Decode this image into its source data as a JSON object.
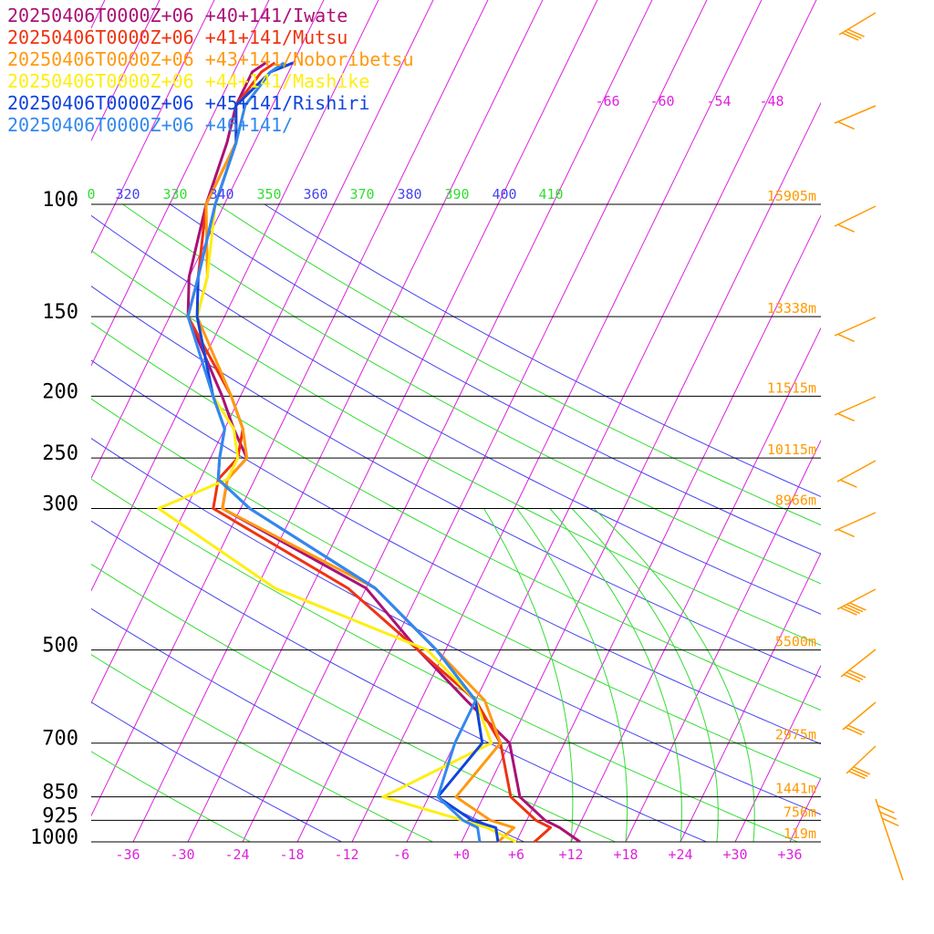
{
  "colors": {
    "background": "#ffffff",
    "isobar": "#000000",
    "isotherm": "#dd22dd",
    "theta_blue": "#4444ee",
    "theta_green": "#33dd33",
    "moist_adiabat": "#33dd33",
    "height_label": "#ff9900",
    "wind_barb": "#ff9900"
  },
  "chart_data": {
    "type": "line",
    "chart_kind": "skew-T log-p sounding",
    "y_axis_scale": "log",
    "ylim": [
      1000,
      100
    ],
    "xlim": [
      -36,
      36
    ],
    "pressure_levels": [
      {
        "p": 100,
        "label": "100",
        "height": "15905m"
      },
      {
        "p": 150,
        "label": "150",
        "height": "13338m"
      },
      {
        "p": 200,
        "label": "200",
        "height": "11515m"
      },
      {
        "p": 250,
        "label": "250",
        "height": "10115m"
      },
      {
        "p": 300,
        "label": "300",
        "height": "8966m"
      },
      {
        "p": 500,
        "label": "500",
        "height": "5500m"
      },
      {
        "p": 700,
        "label": "700",
        "height": "2975m"
      },
      {
        "p": 850,
        "label": "850",
        "height": "1441m"
      },
      {
        "p": 925,
        "label": "925",
        "height": "756m"
      },
      {
        "p": 1000,
        "label": "1000",
        "height": "119m"
      }
    ],
    "temperature_ticks": [
      "-36",
      "-30",
      "-24",
      "-18",
      "-12",
      "-6",
      "+0",
      "+6",
      "+12",
      "+18",
      "+24",
      "+30",
      "+36"
    ],
    "upper_isotherm_labels": [
      "-66",
      "-60",
      "-54",
      "-48"
    ],
    "theta_labels": [
      {
        "text": "0",
        "color": "#33dd33"
      },
      {
        "text": "320",
        "color": "#4444ee"
      },
      {
        "text": "330",
        "color": "#33dd33"
      },
      {
        "text": "340",
        "color": "#4444ee"
      },
      {
        "text": "350",
        "color": "#33dd33"
      },
      {
        "text": "360",
        "color": "#4444ee"
      },
      {
        "text": "370",
        "color": "#33dd33"
      },
      {
        "text": "380",
        "color": "#4444ee"
      },
      {
        "text": "390",
        "color": "#33dd33"
      },
      {
        "text": "400",
        "color": "#4444ee"
      },
      {
        "text": "410",
        "color": "#33dd33"
      }
    ],
    "series": [
      {
        "name": "20250406T0000Z+06 +40+141/Iwate",
        "color": "#aa1177",
        "points": [
          [
            1000,
            13
          ],
          [
            950,
            10
          ],
          [
            925,
            8
          ],
          [
            850,
            4
          ],
          [
            700,
            0
          ],
          [
            600,
            -7
          ],
          [
            500,
            -15
          ],
          [
            400,
            -24
          ],
          [
            300,
            -44
          ],
          [
            270,
            -45
          ],
          [
            250,
            -44
          ],
          [
            225,
            -47
          ],
          [
            200,
            -50
          ],
          [
            150,
            -58
          ],
          [
            130,
            -60
          ],
          [
            100,
            -62
          ],
          [
            80,
            -63
          ],
          [
            70,
            -64
          ],
          [
            62,
            -64
          ],
          [
            60,
            -63
          ]
        ]
      },
      {
        "name": "20250406T0000Z+06 +41+141/Mutsu",
        "color": "#ee3311",
        "points": [
          [
            1000,
            8
          ],
          [
            950,
            9
          ],
          [
            925,
            7
          ],
          [
            850,
            3
          ],
          [
            700,
            -1
          ],
          [
            600,
            -6
          ],
          [
            500,
            -15
          ],
          [
            400,
            -26
          ],
          [
            300,
            -45
          ],
          [
            270,
            -46
          ],
          [
            250,
            -45
          ],
          [
            225,
            -46
          ],
          [
            200,
            -49
          ],
          [
            150,
            -58
          ],
          [
            130,
            -59
          ],
          [
            100,
            -62
          ],
          [
            80,
            -62
          ],
          [
            70,
            -64
          ],
          [
            62,
            -63
          ],
          [
            60,
            -62
          ]
        ]
      },
      {
        "name": "20250406T0000Z+06 +43+141/Noboribetsu",
        "color": "#ff9911",
        "points": [
          [
            1000,
            4
          ],
          [
            950,
            5
          ],
          [
            925,
            2
          ],
          [
            850,
            -3
          ],
          [
            700,
            -1
          ],
          [
            600,
            -5
          ],
          [
            500,
            -13
          ],
          [
            400,
            -23
          ],
          [
            300,
            -44
          ],
          [
            270,
            -45
          ],
          [
            250,
            -44
          ],
          [
            225,
            -46
          ],
          [
            200,
            -49
          ],
          [
            150,
            -57
          ],
          [
            130,
            -58
          ],
          [
            100,
            -62
          ],
          [
            80,
            -62
          ],
          [
            70,
            -64
          ],
          [
            62,
            -62
          ],
          [
            60,
            -60
          ]
        ]
      },
      {
        "name": "20250406T0000Z+06 +44+141/Mashike",
        "color": "#ffee11",
        "points": [
          [
            1000,
            6
          ],
          [
            950,
            2
          ],
          [
            925,
            -1
          ],
          [
            850,
            -11
          ],
          [
            700,
            -2
          ],
          [
            600,
            -6
          ],
          [
            500,
            -14
          ],
          [
            400,
            -34
          ],
          [
            300,
            -51
          ],
          [
            270,
            -45
          ],
          [
            250,
            -45
          ],
          [
            225,
            -47
          ],
          [
            200,
            -51
          ],
          [
            150,
            -57
          ],
          [
            130,
            -58
          ],
          [
            100,
            -61
          ],
          [
            80,
            -62
          ],
          [
            70,
            -63
          ],
          [
            62,
            -62
          ],
          [
            60,
            -61
          ]
        ]
      },
      {
        "name": "20250406T0000Z+06 +45+141/Rishiri",
        "color": "#1144dd",
        "points": [
          [
            1000,
            4
          ],
          [
            950,
            3
          ],
          [
            925,
            0
          ],
          [
            850,
            -5
          ],
          [
            700,
            -3
          ],
          [
            600,
            -6
          ],
          [
            500,
            -13
          ],
          [
            400,
            -23
          ],
          [
            300,
            -41
          ],
          [
            270,
            -46
          ],
          [
            250,
            -47
          ],
          [
            225,
            -48
          ],
          [
            200,
            -51
          ],
          [
            150,
            -57
          ],
          [
            130,
            -59
          ],
          [
            100,
            -61
          ],
          [
            80,
            -62
          ],
          [
            70,
            -64
          ],
          [
            62,
            -62
          ],
          [
            60,
            -60
          ]
        ]
      },
      {
        "name": "20250406T0000Z+06 +46+141/",
        "color": "#3388ee",
        "points": [
          [
            1000,
            2
          ],
          [
            950,
            1
          ],
          [
            925,
            -1
          ],
          [
            850,
            -5
          ],
          [
            700,
            -6
          ],
          [
            600,
            -6
          ],
          [
            500,
            -13
          ],
          [
            400,
            -23
          ],
          [
            300,
            -41
          ],
          [
            270,
            -46
          ],
          [
            250,
            -47
          ],
          [
            225,
            -48
          ],
          [
            200,
            -51
          ],
          [
            150,
            -58
          ],
          [
            130,
            -59
          ],
          [
            100,
            -61
          ],
          [
            80,
            -62
          ],
          [
            70,
            -63
          ],
          [
            62,
            -62
          ],
          [
            60,
            -61
          ]
        ]
      }
    ]
  }
}
